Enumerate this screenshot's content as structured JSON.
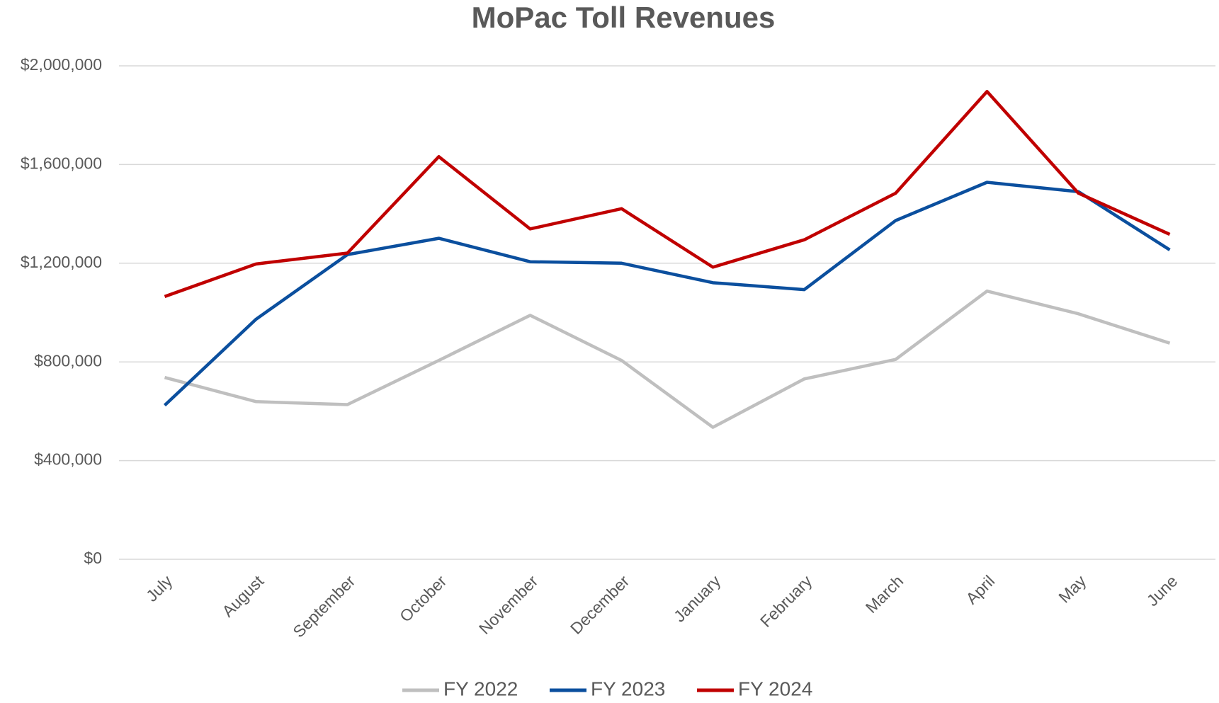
{
  "chart_data": {
    "type": "line",
    "title": "MoPac Toll Revenues",
    "categories": [
      "July",
      "August",
      "September",
      "October",
      "November",
      "December",
      "January",
      "February",
      "March",
      "April",
      "May",
      "June"
    ],
    "series": [
      {
        "name": "FY 2022",
        "color": "#bfbfbf",
        "values": [
          737000,
          639000,
          627000,
          806000,
          989000,
          806000,
          535000,
          731000,
          810000,
          1087000,
          995000,
          876000
        ]
      },
      {
        "name": "FY 2023",
        "color": "#0b4f9e",
        "values": [
          624000,
          973000,
          1235000,
          1301000,
          1206000,
          1200000,
          1121000,
          1093000,
          1373000,
          1528000,
          1490000,
          1254000
        ]
      },
      {
        "name": "FY 2024",
        "color": "#c00000",
        "values": [
          1065000,
          1197000,
          1241000,
          1632000,
          1339000,
          1421000,
          1184000,
          1295000,
          1484000,
          1896000,
          1484000,
          1317000
        ]
      }
    ],
    "ylim": [
      0,
      2000000
    ],
    "yticks": [
      {
        "value": 0,
        "label": "$0"
      },
      {
        "value": 400000,
        "label": "$400,000"
      },
      {
        "value": 800000,
        "label": "$800,000"
      },
      {
        "value": 1200000,
        "label": "$1,200,000"
      },
      {
        "value": 1600000,
        "label": "$1,600,000"
      },
      {
        "value": 2000000,
        "label": "$2,000,000"
      }
    ],
    "grid": true,
    "legend": "bottom"
  }
}
